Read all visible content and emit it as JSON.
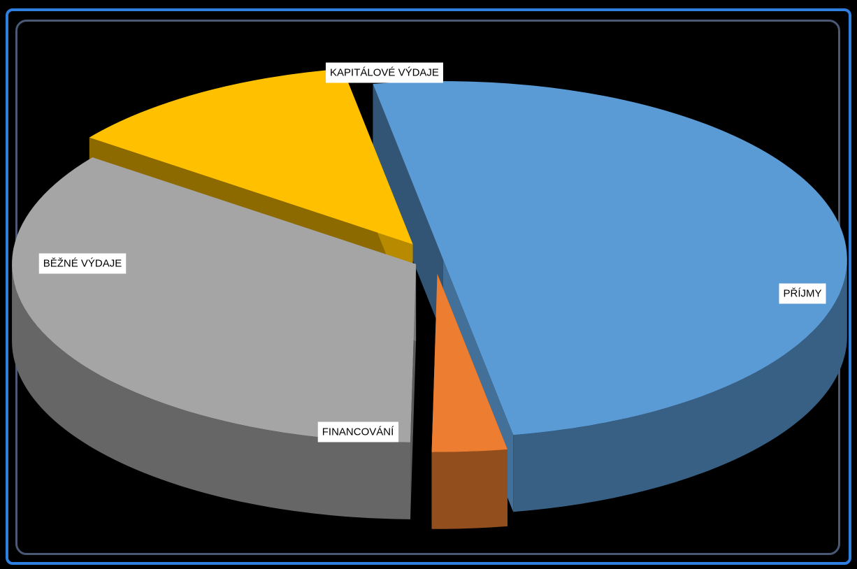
{
  "chart_data": {
    "type": "pie",
    "style": "3d-exploded",
    "slices": [
      {
        "label": "PŘÍJMY",
        "value": 50,
        "color": "#5b9bd5"
      },
      {
        "label": "FINANCOVÁNÍ",
        "value": 3,
        "color": "#ed7d31"
      },
      {
        "label": "BĚŽNÉ VÝDAJE",
        "value": 35,
        "color": "#a5a5a5"
      },
      {
        "label": "KAPITÁLOVÉ VÝDAJE",
        "value": 12,
        "color": "#ffc000"
      }
    ],
    "legend": "none",
    "data_labels": "category name"
  }
}
